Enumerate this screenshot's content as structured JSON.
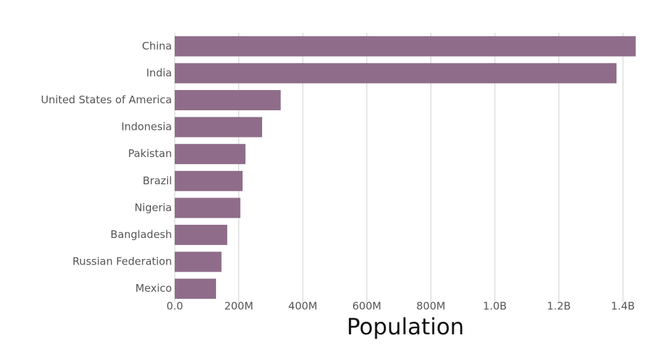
{
  "chart_data": {
    "type": "bar",
    "orientation": "horizontal",
    "x_label": "Population",
    "categories": [
      "China",
      "India",
      "United States of America",
      "Indonesia",
      "Pakistan",
      "Brazil",
      "Nigeria",
      "Bangladesh",
      "Russian Federation",
      "Mexico"
    ],
    "values": [
      1440000000,
      1380000000,
      331000000,
      273000000,
      221000000,
      212000000,
      205000000,
      164000000,
      146000000,
      129000000
    ],
    "color": "#8f6d8a",
    "xlim": [
      0,
      1441000000
    ],
    "xticks": [
      {
        "value": 0,
        "label": "0.0"
      },
      {
        "value": 200000000,
        "label": "200M"
      },
      {
        "value": 400000000,
        "label": "400M"
      },
      {
        "value": 600000000,
        "label": "600M"
      },
      {
        "value": 800000000,
        "label": "800M"
      },
      {
        "value": 1000000000,
        "label": "1.0B"
      },
      {
        "value": 1200000000,
        "label": "1.2B"
      },
      {
        "value": 1400000000,
        "label": "1.4B"
      }
    ],
    "grid": true
  }
}
